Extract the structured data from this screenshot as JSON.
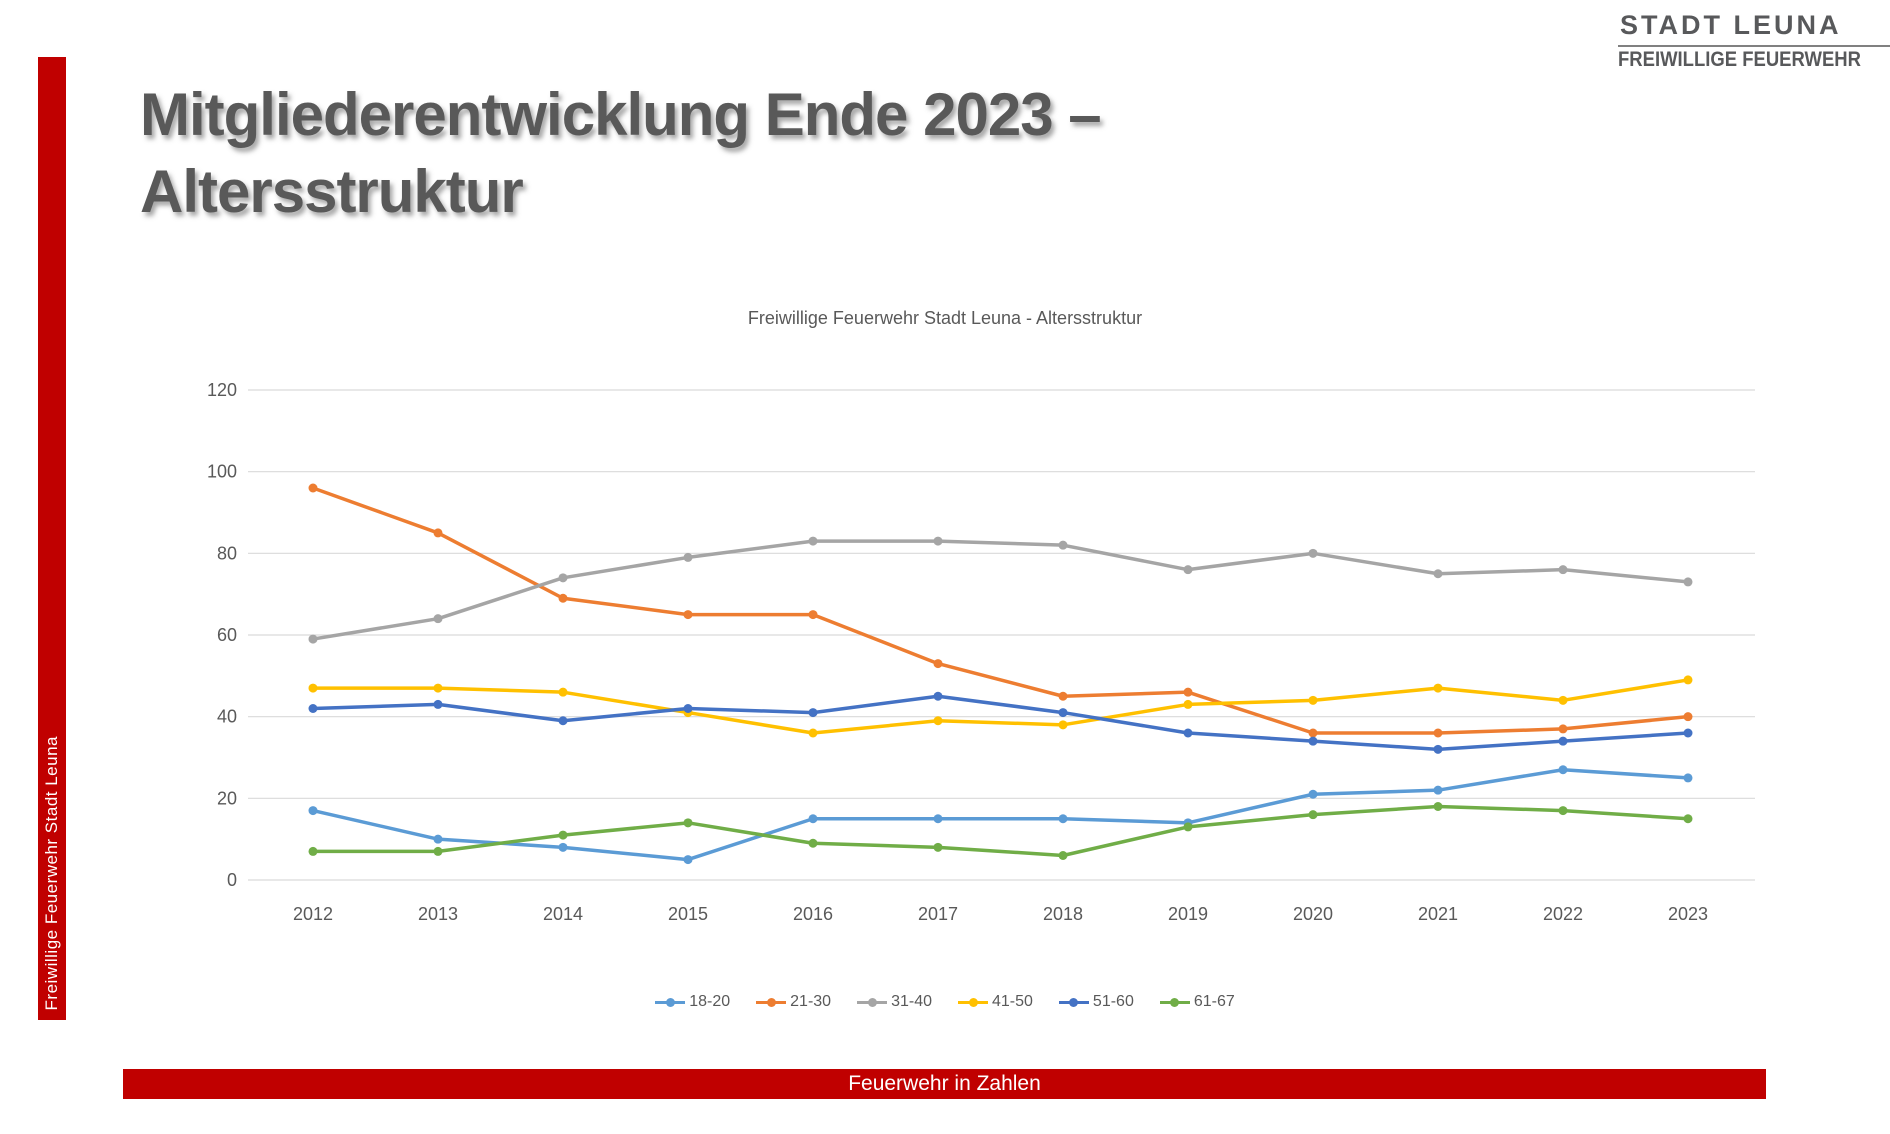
{
  "logo": {
    "line1": "STADT LEUNA",
    "line2": "FREIWILLIGE FEUERWEHR"
  },
  "sidebar": {
    "vertical_text": "Freiwillige Feuerwehr Stadt Leuna"
  },
  "title": {
    "line1": "Mitgliederentwicklung Ende 2023 –",
    "line2": "Altersstruktur"
  },
  "footer": {
    "text": "Feuerwehr in Zahlen"
  },
  "colors": {
    "accent_red": "#C00000",
    "title_gray": "#595959",
    "logo_gray": "#58595B",
    "axis_label_gray": "#595959",
    "gridline_gray": "#D9D9D9"
  },
  "chart_data": {
    "type": "line",
    "title": "Freiwillige Feuerwehr Stadt Leuna - Altersstruktur",
    "categories": [
      "2012",
      "2013",
      "2014",
      "2015",
      "2016",
      "2017",
      "2018",
      "2019",
      "2020",
      "2021",
      "2022",
      "2023"
    ],
    "series": [
      {
        "name": "18-20",
        "color": "#5B9BD5",
        "values": [
          17,
          10,
          8,
          5,
          15,
          15,
          15,
          14,
          21,
          22,
          27,
          25
        ]
      },
      {
        "name": "21-30",
        "color": "#ED7D31",
        "values": [
          96,
          85,
          69,
          65,
          65,
          53,
          45,
          46,
          36,
          36,
          37,
          40
        ]
      },
      {
        "name": "31-40",
        "color": "#A5A5A5",
        "values": [
          59,
          64,
          74,
          79,
          83,
          83,
          82,
          76,
          80,
          75,
          76,
          73
        ]
      },
      {
        "name": "41-50",
        "color": "#FFC000",
        "values": [
          47,
          47,
          46,
          41,
          36,
          39,
          38,
          43,
          44,
          47,
          44,
          49
        ]
      },
      {
        "name": "51-60",
        "color": "#4472C4",
        "values": [
          42,
          43,
          39,
          42,
          41,
          45,
          41,
          36,
          34,
          32,
          34,
          36
        ]
      },
      {
        "name": "61-67",
        "color": "#70AD47",
        "values": [
          7,
          7,
          11,
          14,
          9,
          8,
          6,
          13,
          16,
          18,
          17,
          15
        ]
      }
    ],
    "xlabel": "",
    "ylabel": "",
    "ylim": [
      0,
      120
    ],
    "ytick_interval": 20,
    "grid": true,
    "legend_position": "bottom"
  }
}
